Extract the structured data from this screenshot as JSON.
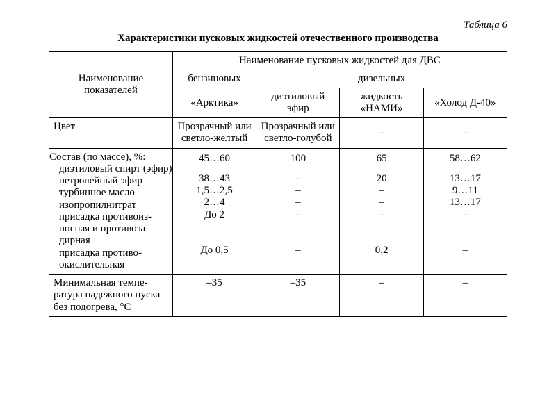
{
  "caption": "Таблица 6",
  "title": "Характеристики пусковых жидкостей отечественного производства",
  "headers": {
    "param": "Наименование показателей",
    "group": "Наименование пусковых жидкостей для ДВС",
    "gasoline": "бензиновых",
    "diesel": "дизельных",
    "col1": "«Арктика»",
    "col2": "диэтиловый эфир",
    "col3": "жидкость «НАМИ»",
    "col4": "«Холод Д-40»"
  },
  "rows": {
    "color": {
      "label": "Цвет",
      "c1": "Прозрачный или светло-желтый",
      "c2": "Прозрачный или светло-голубой",
      "c3": "–",
      "c4": "–"
    },
    "comp": {
      "label": "Состав (по массе), %:",
      "items": [
        {
          "label": "диэтиловый спирт (эфир)",
          "c1": "45…60",
          "c2": "100",
          "c3": "65",
          "c4": "58…62"
        },
        {
          "label": "петролейный эфир",
          "c1": "38…43",
          "c2": "–",
          "c3": "20",
          "c4": "13…17"
        },
        {
          "label": "турбинное масло",
          "c1": "1,5…2,5",
          "c2": "–",
          "c3": "–",
          "c4": "9…11"
        },
        {
          "label": "изопропилнитрат",
          "c1": "2…4",
          "c2": "–",
          "c3": "–",
          "c4": "13…17"
        },
        {
          "label": "присадка противоиз-носная и противоза-дирная",
          "c1": "До 2",
          "c2": "–",
          "c3": "–",
          "c4": "–"
        },
        {
          "label": "присадка противо-окислительная",
          "c1": "До 0,5",
          "c2": "–",
          "c3": "0,2",
          "c4": "–"
        }
      ]
    },
    "temp": {
      "label": "Минимальная темпе-ратура надежного пуска без подогрева, °С",
      "c1": "–35",
      "c2": "–35",
      "c3": "–",
      "c4": "–"
    }
  },
  "styling": {
    "font_family": "Times New Roman",
    "font_size_pt": 11,
    "border_color": "#000000",
    "background": "#ffffff"
  }
}
